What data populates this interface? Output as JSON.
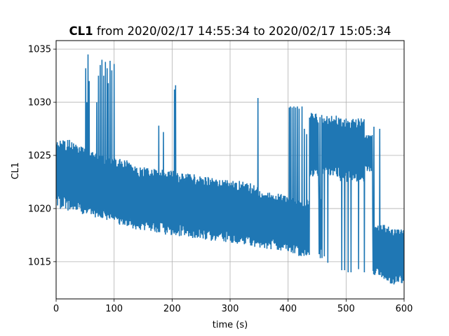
{
  "chart_data": {
    "type": "line",
    "title_bold": "CL1",
    "title_rest": " from 2020/02/17 14:55:34 to 2020/02/17 15:05:34",
    "xlabel": "time (s)",
    "ylabel": "CL1",
    "xlim": [
      0,
      600
    ],
    "ylim": [
      1011.5,
      1035.8
    ],
    "x_ticks": [
      0,
      100,
      200,
      300,
      400,
      500,
      600
    ],
    "y_ticks": [
      1015,
      1020,
      1025,
      1030,
      1035
    ],
    "grid": true,
    "line_color": "#1f77b4",
    "series": [
      {
        "sample_interval_s": 1,
        "envelope": [
          {
            "x": 0,
            "low": 1020.0,
            "high": 1026.6
          },
          {
            "x": 20,
            "low": 1019.8,
            "high": 1026.6
          },
          {
            "x": 40,
            "low": 1019.6,
            "high": 1026.0
          },
          {
            "x": 50,
            "low": 1019.3,
            "high": 1025.6
          },
          {
            "x": 60,
            "low": 1019.2,
            "high": 1025.5
          },
          {
            "x": 80,
            "low": 1018.9,
            "high": 1025.0
          },
          {
            "x": 100,
            "low": 1018.7,
            "high": 1024.9
          },
          {
            "x": 120,
            "low": 1018.2,
            "high": 1024.6
          },
          {
            "x": 140,
            "low": 1018.0,
            "high": 1024.0
          },
          {
            "x": 160,
            "low": 1017.8,
            "high": 1023.8
          },
          {
            "x": 180,
            "low": 1017.6,
            "high": 1023.7
          },
          {
            "x": 200,
            "low": 1017.4,
            "high": 1023.6
          },
          {
            "x": 220,
            "low": 1017.3,
            "high": 1023.4
          },
          {
            "x": 240,
            "low": 1017.2,
            "high": 1023.2
          },
          {
            "x": 260,
            "low": 1017.0,
            "high": 1023.0
          },
          {
            "x": 280,
            "low": 1016.9,
            "high": 1022.8
          },
          {
            "x": 300,
            "low": 1016.7,
            "high": 1022.7
          },
          {
            "x": 320,
            "low": 1016.6,
            "high": 1022.6
          },
          {
            "x": 340,
            "low": 1016.4,
            "high": 1022.3
          },
          {
            "x": 360,
            "low": 1016.2,
            "high": 1021.8
          },
          {
            "x": 380,
            "low": 1016.1,
            "high": 1021.5
          },
          {
            "x": 400,
            "low": 1015.8,
            "high": 1021.2
          },
          {
            "x": 420,
            "low": 1015.5,
            "high": 1021.0
          },
          {
            "x": 440,
            "low": 1015.4,
            "high": 1020.8
          },
          {
            "x": 460,
            "low": 1015.3,
            "high": 1021.0
          },
          {
            "x": 480,
            "low": 1014.6,
            "high": 1028.2
          },
          {
            "x": 500,
            "low": 1014.5,
            "high": 1028.0
          },
          {
            "x": 520,
            "low": 1014.4,
            "high": 1027.8
          },
          {
            "x": 540,
            "low": 1013.9,
            "high": 1018.8
          },
          {
            "x": 560,
            "low": 1013.4,
            "high": 1018.6
          },
          {
            "x": 580,
            "low": 1012.8,
            "high": 1018.2
          },
          {
            "x": 600,
            "low": 1013.0,
            "high": 1018.0
          }
        ],
        "upper_regimes": [
          {
            "x0": 437,
            "x1": 452,
            "low": 1023.0,
            "high": 1029.0
          },
          {
            "x0": 459,
            "x1": 487,
            "low": 1023.0,
            "high": 1028.8
          },
          {
            "x0": 488,
            "x1": 531,
            "low": 1022.5,
            "high": 1028.5
          },
          {
            "x0": 532,
            "x1": 545,
            "low": 1023.5,
            "high": 1027.0
          }
        ],
        "spikes": [
          {
            "x": 51,
            "y": 1033.2
          },
          {
            "x": 53,
            "y": 1030.0
          },
          {
            "x": 55,
            "y": 1034.5
          },
          {
            "x": 57,
            "y": 1032.0
          },
          {
            "x": 70,
            "y": 1030.0
          },
          {
            "x": 73,
            "y": 1032.5
          },
          {
            "x": 76,
            "y": 1033.5
          },
          {
            "x": 79,
            "y": 1034.0
          },
          {
            "x": 82,
            "y": 1032.5
          },
          {
            "x": 85,
            "y": 1033.8
          },
          {
            "x": 88,
            "y": 1033.2
          },
          {
            "x": 90,
            "y": 1031.8
          },
          {
            "x": 93,
            "y": 1033.9
          },
          {
            "x": 96,
            "y": 1033.0
          },
          {
            "x": 100,
            "y": 1033.6
          },
          {
            "x": 177,
            "y": 1027.8
          },
          {
            "x": 185,
            "y": 1027.2
          },
          {
            "x": 204,
            "y": 1031.2
          },
          {
            "x": 206,
            "y": 1031.6
          },
          {
            "x": 348,
            "y": 1030.4
          },
          {
            "x": 402,
            "y": 1029.5
          },
          {
            "x": 404,
            "y": 1029.6
          },
          {
            "x": 407,
            "y": 1029.5
          },
          {
            "x": 410,
            "y": 1029.6
          },
          {
            "x": 413,
            "y": 1029.5
          },
          {
            "x": 416,
            "y": 1029.6
          },
          {
            "x": 419,
            "y": 1029.4
          },
          {
            "x": 424,
            "y": 1029.6
          },
          {
            "x": 428,
            "y": 1027.5
          },
          {
            "x": 432,
            "y": 1027.0
          },
          {
            "x": 455,
            "y": 1028.6
          },
          {
            "x": 458,
            "y": 1028.8
          },
          {
            "x": 548,
            "y": 1027.7
          },
          {
            "x": 558,
            "y": 1027.5
          }
        ],
        "dips": [
          {
            "x": 462,
            "y": 1015.5
          },
          {
            "x": 468,
            "y": 1014.9
          },
          {
            "x": 492,
            "y": 1014.2
          },
          {
            "x": 497,
            "y": 1014.2
          },
          {
            "x": 503,
            "y": 1014.0
          },
          {
            "x": 508,
            "y": 1014.0
          },
          {
            "x": 521,
            "y": 1014.3
          },
          {
            "x": 531,
            "y": 1014.0
          }
        ]
      }
    ]
  }
}
